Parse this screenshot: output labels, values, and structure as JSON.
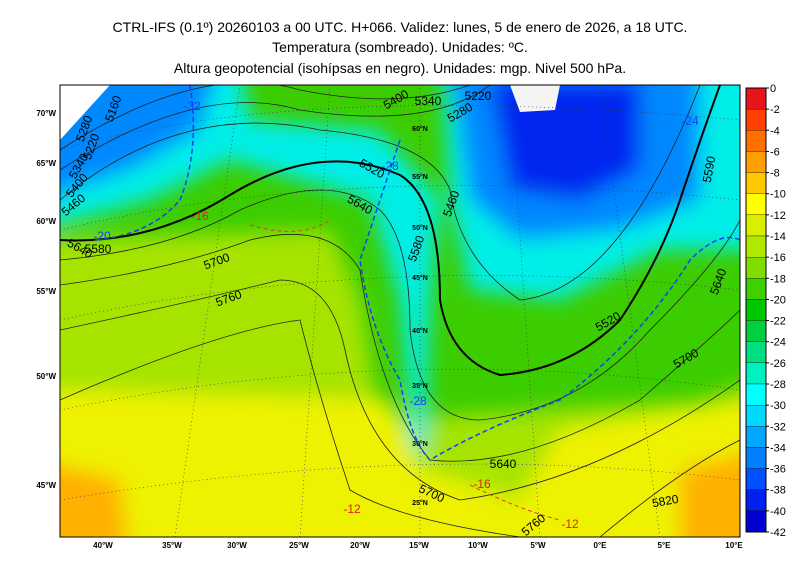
{
  "header": {
    "title": [
      "CTRL-IFS (0.1º) 20260103 a 00 UTC. H+066. Validez: lunes, 5 de enero de 2026, a 18 UTC.",
      "Temperatura (sombreado). Unidades: ºC.",
      "Altura geopotencial (isohípsas en negro). Unidades: mgp. Nivel 500 hPa."
    ]
  },
  "colorbar": {
    "ticks": [
      0,
      -2,
      -4,
      -6,
      -8,
      -10,
      -12,
      -14,
      -16,
      -18,
      -20,
      -22,
      -24,
      -26,
      -28,
      -30,
      -32,
      -34,
      -36,
      -38,
      -40,
      -42
    ],
    "colors": [
      "#e8141c",
      "#ff4000",
      "#ff7000",
      "#ffa000",
      "#ffc800",
      "#ffff00",
      "#d8f000",
      "#b0e800",
      "#80dd00",
      "#40d000",
      "#00c800",
      "#00d040",
      "#00e080",
      "#00f0c0",
      "#00ffff",
      "#00d8ff",
      "#00a8ff",
      "#0080ff",
      "#0050ff",
      "#0020f0",
      "#0000d0"
    ]
  },
  "map": {
    "left_labels": [
      "70°W",
      "65°W",
      "60°W",
      "55°W",
      "50°W",
      "45°W"
    ],
    "bottom_labels": [
      "40°W",
      "35°W",
      "30°W",
      "25°W",
      "20°W",
      "15°W",
      "10°W",
      "5°W",
      "0°E",
      "5°E",
      "10°E"
    ],
    "lat_labels": [
      "60°N",
      "55°N",
      "50°N",
      "45°N",
      "40°N",
      "35°N",
      "30°N",
      "25°N"
    ],
    "height_labels": [
      "5160",
      "5220",
      "5280",
      "5340",
      "5400",
      "5460",
      "5520",
      "5580",
      "5640",
      "5700",
      "5760",
      "5820",
      "5580",
      "5640",
      "5700",
      "5520",
      "5220",
      "5340",
      "5400",
      "5280",
      "5460",
      "5640",
      "5590",
      "5640",
      "5700",
      "5760"
    ],
    "temperature_labels": [
      "-32",
      "-28",
      "-24",
      "-20",
      "-16",
      "-16",
      "-12",
      "-12",
      "-28"
    ]
  }
}
